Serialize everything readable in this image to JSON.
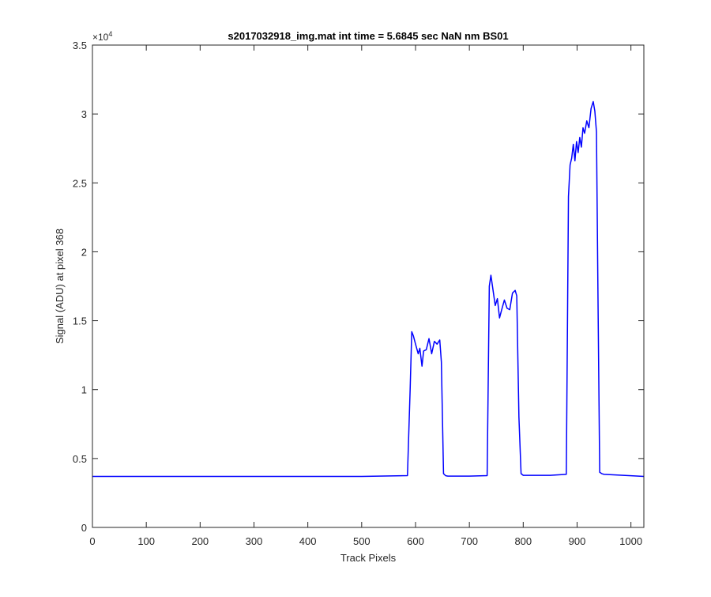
{
  "chart_data": {
    "type": "line",
    "title": "s2017032918_img.mat int time = 5.6845 sec  NaN nm BS01",
    "xlabel": "Track Pixels",
    "ylabel": "Signal (ADU) at pixel 368",
    "xlim": [
      0,
      1024
    ],
    "ylim": [
      0,
      35000
    ],
    "x_ticks": [
      0,
      100,
      200,
      300,
      400,
      500,
      600,
      700,
      800,
      900,
      1000
    ],
    "y_ticks": [
      0,
      0.5,
      1,
      1.5,
      2,
      2.5,
      3,
      3.5
    ],
    "y_tick_labels": [
      "0",
      "0.5",
      "1",
      "1.5",
      "2",
      "2.5",
      "3",
      "3.5"
    ],
    "y_multiplier": {
      "base": "×10",
      "exponent": "4"
    },
    "grid": false,
    "series": [
      {
        "color": "#0000ff",
        "x": [
          0,
          100,
          200,
          300,
          400,
          500,
          585,
          590,
          593,
          596,
          600,
          605,
          608,
          612,
          615,
          620,
          625,
          630,
          635,
          640,
          645,
          648,
          652,
          656,
          660,
          700,
          733,
          737,
          740,
          744,
          748,
          752,
          756,
          760,
          765,
          770,
          775,
          780,
          785,
          788,
          792,
          796,
          800,
          850,
          880,
          884,
          887,
          890,
          893,
          896,
          899,
          902,
          905,
          908,
          911,
          914,
          918,
          922,
          926,
          930,
          933,
          936,
          939,
          942,
          946,
          950,
          1000,
          1024
        ],
        "y": [
          3700,
          3700,
          3700,
          3700,
          3700,
          3700,
          3760,
          10000,
          14200,
          13900,
          13300,
          12600,
          13000,
          11700,
          12800,
          12900,
          13700,
          12600,
          13500,
          13300,
          13600,
          12000,
          3900,
          3750,
          3720,
          3720,
          3760,
          17500,
          18300,
          17200,
          16100,
          16600,
          15200,
          15800,
          16500,
          15900,
          15800,
          17000,
          17200,
          16800,
          8000,
          3900,
          3780,
          3780,
          3850,
          24000,
          26300,
          26800,
          27800,
          26600,
          28000,
          27200,
          28300,
          27600,
          29000,
          28600,
          29500,
          29000,
          30400,
          30900,
          30200,
          28700,
          16000,
          4000,
          3900,
          3850,
          3750,
          3700
        ]
      }
    ]
  }
}
